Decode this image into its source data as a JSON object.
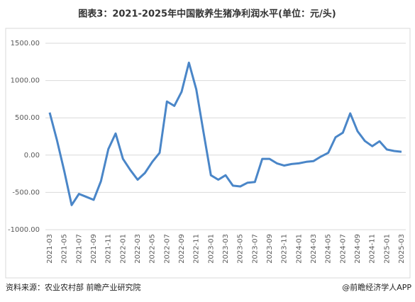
{
  "chart_data": {
    "type": "line",
    "title": "图表3：2021-2025年中国散养生猪净利润水平(单位：元/头)",
    "source": "资料来源：农业农村部 前瞻产业研究院",
    "brand": "@前瞻经济学人APP",
    "categories": [
      "2021-03",
      null,
      "2021-05",
      null,
      "2021-07",
      null,
      "2021-09",
      null,
      "2021-11",
      null,
      "2022-01",
      null,
      "2022-03",
      null,
      "2022-05",
      null,
      "2022-07",
      null,
      "2022-09",
      null,
      "2022-11",
      null,
      "2023-01",
      null,
      "2023-03",
      null,
      "2023-05",
      null,
      "2023-07",
      null,
      "2023-09",
      null,
      "2023-11",
      null,
      "2024-01",
      null,
      "2024-03",
      null,
      "2024-05",
      null,
      "2024-07",
      null,
      "2024-09",
      null,
      "2024-11",
      null,
      "2025-01",
      null,
      "2025-03"
    ],
    "series": [
      {
        "name": "净利润",
        "color": "#4a86c8",
        "values": [
          570,
          200,
          -220,
          -670,
          -520,
          -560,
          -600,
          -350,
          80,
          290,
          -50,
          -200,
          -330,
          -240,
          -90,
          30,
          720,
          660,
          850,
          1240,
          880,
          300,
          -270,
          -330,
          -270,
          -410,
          -420,
          -370,
          -360,
          -50,
          -50,
          -110,
          -140,
          -120,
          -110,
          -90,
          -80,
          -20,
          30,
          240,
          300,
          560,
          320,
          190,
          120,
          185,
          75,
          55,
          45
        ]
      }
    ],
    "ylim": [
      -1000,
      1500
    ],
    "yticks": [
      {
        "value": -1000,
        "label": "-1000.00"
      },
      {
        "value": -500,
        "label": "-500.00"
      },
      {
        "value": 0,
        "label": "0.00"
      },
      {
        "value": 500,
        "label": "500.00"
      },
      {
        "value": 1000,
        "label": "1000.00"
      },
      {
        "value": 1500,
        "label": "1500.00"
      }
    ],
    "grid": true
  }
}
